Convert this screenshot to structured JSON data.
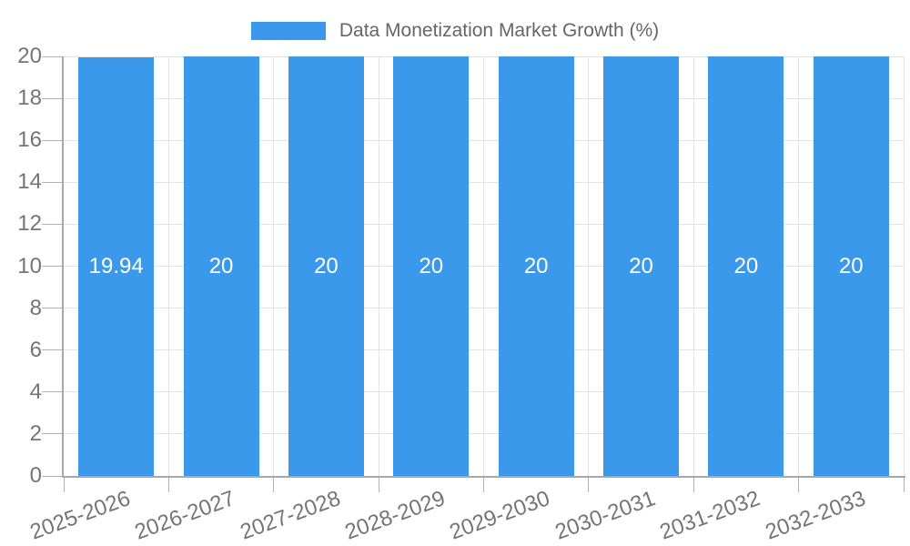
{
  "colors": {
    "bar": "#3b99ec",
    "grid": "#e3e3e3",
    "axis": "#a8a8a8",
    "tick_mark": "#b3b3b3",
    "tick_text": "#757575",
    "legend_text": "#666666",
    "bar_label_text": "#ffffff",
    "background": "#ffffff"
  },
  "chart_data": {
    "type": "bar",
    "title": "Data Monetization Market Growth (%)",
    "legend_position": "top",
    "grid": true,
    "categories": [
      "2025-2026",
      "2026-2027",
      "2027-2028",
      "2028-2029",
      "2029-2030",
      "2030-2031",
      "2031-2032",
      "2032-2033"
    ],
    "series": [
      {
        "name": "Data Monetization Market Growth (%)",
        "values": [
          19.94,
          20,
          20,
          20,
          20,
          20,
          20,
          20
        ]
      }
    ],
    "value_labels": [
      "19.94",
      "20",
      "20",
      "20",
      "20",
      "20",
      "20",
      "20"
    ],
    "xlabel": "",
    "ylabel": "",
    "ylim": [
      0,
      20
    ],
    "ytick_step": 2,
    "ytick_labels": [
      "0",
      "2",
      "4",
      "6",
      "8",
      "10",
      "12",
      "14",
      "16",
      "18",
      "20"
    ]
  }
}
